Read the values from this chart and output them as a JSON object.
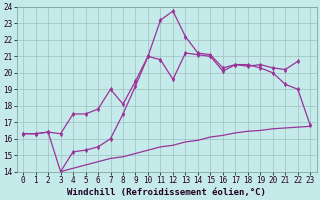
{
  "background_color": "#c5eaea",
  "grid_color": "#9fbfbf",
  "line_color": "#993399",
  "xlabel": "Windchill (Refroidissement éolien,°C)",
  "xlim": [
    -0.5,
    23.5
  ],
  "ylim": [
    14,
    24
  ],
  "yticks": [
    14,
    15,
    16,
    17,
    18,
    19,
    20,
    21,
    22,
    23,
    24
  ],
  "xticks": [
    0,
    1,
    2,
    3,
    4,
    5,
    6,
    7,
    8,
    9,
    10,
    11,
    12,
    13,
    14,
    15,
    16,
    17,
    18,
    19,
    20,
    21,
    22,
    23
  ],
  "line1_x": [
    0,
    1,
    2,
    3,
    4,
    5,
    6,
    7,
    8,
    9,
    10,
    11,
    12,
    13,
    14,
    15,
    16,
    17,
    18,
    19,
    20,
    21,
    22,
    23
  ],
  "line1_y": [
    16.3,
    16.3,
    16.4,
    16.3,
    17.5,
    17.5,
    17.8,
    19.0,
    18.1,
    19.5,
    21.0,
    20.8,
    19.6,
    21.2,
    21.1,
    21.0,
    20.1,
    20.5,
    20.5,
    20.3,
    20.0,
    19.3,
    19.0,
    16.8
  ],
  "line2_x": [
    0,
    1,
    2,
    3,
    4,
    5,
    6,
    7,
    8,
    9,
    10,
    11,
    12,
    13,
    14,
    15,
    16,
    17,
    18,
    19,
    20,
    21,
    22
  ],
  "line2_y": [
    16.3,
    16.3,
    16.4,
    14.0,
    15.2,
    15.3,
    15.5,
    16.0,
    17.5,
    19.2,
    21.0,
    23.2,
    23.75,
    22.2,
    21.2,
    21.1,
    20.3,
    20.5,
    20.4,
    20.5,
    20.3,
    20.2,
    20.7
  ],
  "line3_x": [
    3,
    4,
    5,
    6,
    7,
    8,
    9,
    10,
    11,
    12,
    13,
    14,
    15,
    16,
    17,
    18,
    19,
    20,
    21,
    22,
    23
  ],
  "line3_y": [
    14.0,
    14.2,
    14.4,
    14.6,
    14.8,
    14.9,
    15.1,
    15.3,
    15.5,
    15.6,
    15.8,
    15.9,
    16.1,
    16.2,
    16.35,
    16.45,
    16.5,
    16.6,
    16.65,
    16.7,
    16.75
  ],
  "markersize": 2.5,
  "linewidth": 0.9,
  "xlabel_fontsize": 6.5,
  "tick_fontsize": 5.5
}
